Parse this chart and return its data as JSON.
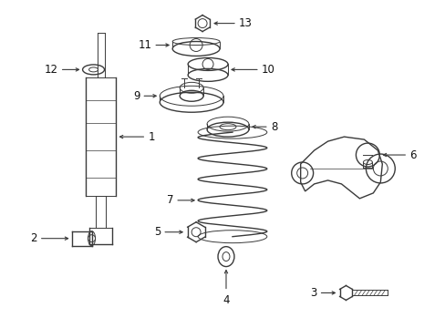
{
  "bg_color": "#ffffff",
  "line_color": "#3a3a3a",
  "label_color": "#111111",
  "fig_width": 4.89,
  "fig_height": 3.6,
  "dpi": 100
}
